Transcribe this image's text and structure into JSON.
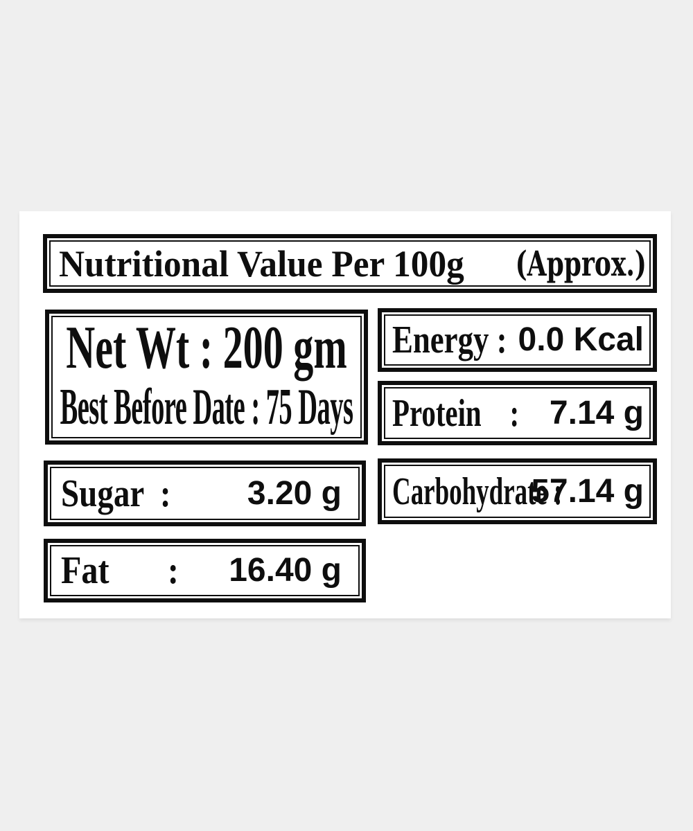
{
  "colors": {
    "background": "#efefef",
    "card": "#ffffff",
    "ink": "#0e0e0e"
  },
  "title": {
    "main": "Nutritional Value Per 100g",
    "approx": "(Approx.)"
  },
  "net_wt": {
    "line1": "Net Wt : 200 gm",
    "line2": "Best Before Date : 75 Days"
  },
  "facts": {
    "energy": {
      "label": "Energy :",
      "value": "0.0 Kcal"
    },
    "protein": {
      "label": "Protein    :",
      "value": "7.14 g"
    },
    "sugar": {
      "label": "Sugar  :",
      "value": "3.20 g"
    },
    "carbohydrate": {
      "label": "Carbohydrate :",
      "value": "57.14 g"
    },
    "fat": {
      "label": "Fat       :",
      "value": "16.40 g"
    }
  }
}
